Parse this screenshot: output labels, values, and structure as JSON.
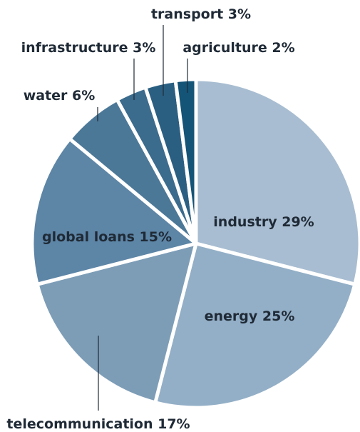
{
  "chart_data": {
    "type": "pie",
    "start_angle_deg": 90,
    "direction": "clockwise",
    "slices": [
      {
        "name": "industry",
        "label": "industry 29%",
        "value": 29,
        "color": "#a8bdd1"
      },
      {
        "name": "energy",
        "label": "energy 25%",
        "value": 25,
        "color": "#93afc7"
      },
      {
        "name": "telecommunication",
        "label": "telecommunication 17%",
        "value": 17,
        "color": "#7d9db7"
      },
      {
        "name": "global-loans",
        "label": "global loans 15%",
        "value": 15,
        "color": "#5d85a6"
      },
      {
        "name": "water",
        "label": "water 6%",
        "value": 6,
        "color": "#4c7898"
      },
      {
        "name": "infrastructure",
        "label": "infrastructure 3%",
        "value": 3,
        "color": "#3b6b8d"
      },
      {
        "name": "transport",
        "label": "transport 3%",
        "value": 3,
        "color": "#2a5f82"
      },
      {
        "name": "agriculture",
        "label": "agriculture 2%",
        "value": 2,
        "color": "#145477"
      }
    ]
  }
}
